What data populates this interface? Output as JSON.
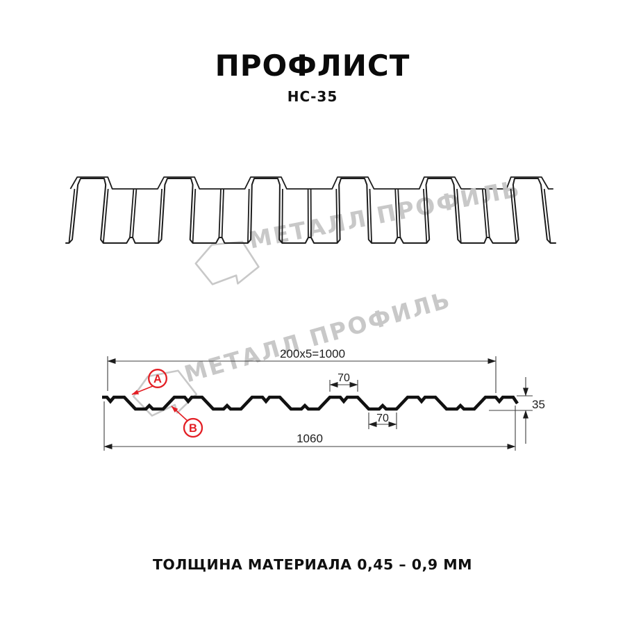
{
  "header": {
    "title": "ПРОФЛИСТ",
    "subtitle": "НС-35"
  },
  "watermark": {
    "brand": "МЕТАЛЛ ПРОФИЛЬ"
  },
  "cross_section": {
    "dim_top_pitch": "200x5=1000",
    "dim_crest_width": "70",
    "dim_valley_width": "70",
    "dim_height": "35",
    "dim_total_width": "1060",
    "callout_a": "A",
    "callout_b": "B"
  },
  "footer": {
    "thickness_note": "ТОЛЩИНА МАТЕРИАЛА 0,45 – 0,9 ММ"
  },
  "colors": {
    "accent_red": "#e31e24",
    "line": "#1c1c1c",
    "watermark": "#c6c6c6"
  }
}
